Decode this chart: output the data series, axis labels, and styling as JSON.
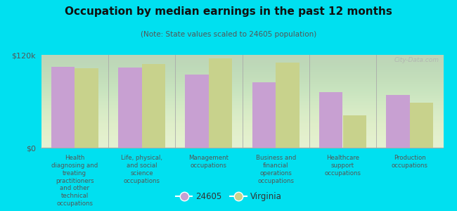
{
  "title": "Occupation by median earnings in the past 12 months",
  "subtitle": "(Note: State values scaled to 24605 population)",
  "categories": [
    "Health\ndiagnosing and\ntreating\npractitioners\nand other\ntechnical\noccupations",
    "Life, physical,\nand social\nscience\noccupations",
    "Management\noccupations",
    "Business and\nfinancial\noperations\noccupations",
    "Healthcare\nsupport\noccupations",
    "Production\noccupations"
  ],
  "values_24605": [
    105000,
    104000,
    95000,
    85000,
    72000,
    68000
  ],
  "values_virginia": [
    103000,
    108000,
    115000,
    110000,
    42000,
    58000
  ],
  "color_24605": "#c8a0d2",
  "color_virginia": "#c8d28c",
  "background_outer": "#00e0f0",
  "background_plot_top": "#f0f5e0",
  "background_plot_bottom": "#e0eed0",
  "ylim": [
    0,
    120000
  ],
  "ytick_labels": [
    "$0",
    "$120k"
  ],
  "legend_label_24605": "24605",
  "legend_label_virginia": "Virginia",
  "watermark": "City-Data.com"
}
